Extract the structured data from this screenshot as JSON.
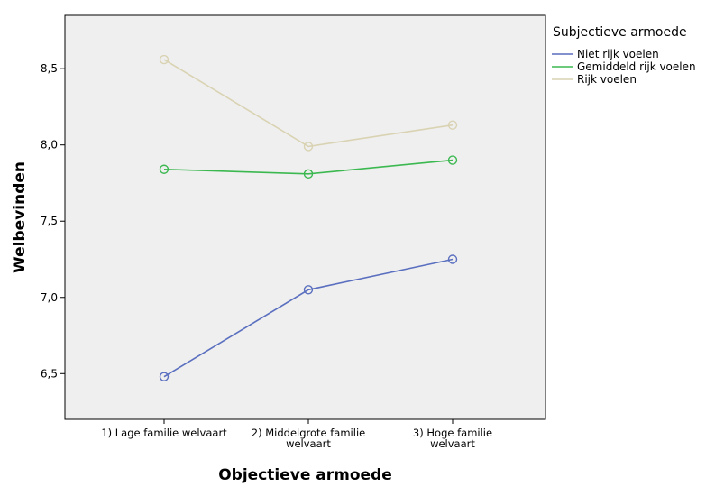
{
  "chart_data": {
    "type": "line",
    "title": "",
    "xlabel": "Objectieve armoede",
    "ylabel": "Welbevinden",
    "categories": [
      [
        "1) Lage familie welvaart"
      ],
      [
        "2) Middelgrote familie",
        "welvaart"
      ],
      [
        "3) Hoge familie",
        "welvaart"
      ]
    ],
    "yticks": [
      "6,5",
      "7,0",
      "7,5",
      "8,0",
      "8,5"
    ],
    "ytick_values": [
      6.5,
      7.0,
      7.5,
      8.0,
      8.5
    ],
    "ylim": [
      6.2,
      8.85
    ],
    "grid": false,
    "plot_background": "#efefef",
    "legend": {
      "title": "Subjectieve armoede",
      "placement": "right"
    },
    "series": [
      {
        "name": "Niet rijk voelen",
        "color": "#5a6fbf",
        "values": [
          6.48,
          7.05,
          7.25
        ]
      },
      {
        "name": "Gemiddeld rijk voelen",
        "color": "#3cb850",
        "values": [
          7.84,
          7.81,
          7.9
        ]
      },
      {
        "name": "Rijk voelen",
        "color": "#d9d3b3",
        "values": [
          8.56,
          7.99,
          8.13
        ]
      }
    ]
  }
}
